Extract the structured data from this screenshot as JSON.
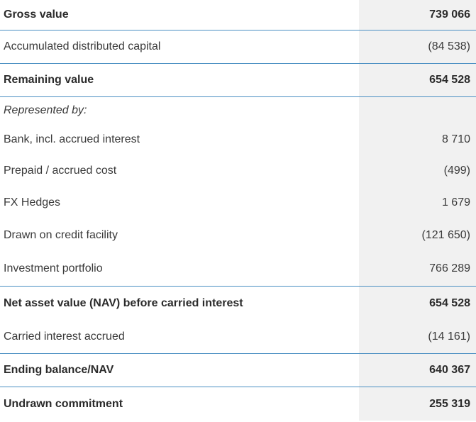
{
  "rows": [
    {
      "label": "Gross value",
      "value": "739 066"
    },
    {
      "label": "Accumulated distributed capital",
      "value": "(84 538)"
    },
    {
      "label": "Remaining value",
      "value": "654 528"
    },
    {
      "label": "Represented by:",
      "value": ""
    },
    {
      "label": "Bank, incl. accrued interest",
      "value": "8 710"
    },
    {
      "label": "Prepaid / accrued cost",
      "value": "(499)"
    },
    {
      "label": "FX Hedges",
      "value": "1 679"
    },
    {
      "label": "Drawn on credit facility",
      "value": "(121 650)"
    },
    {
      "label": "Investment portfolio",
      "value": "766 289"
    },
    {
      "label": "Net asset value (NAV) before carried interest",
      "value": "654 528"
    },
    {
      "label": "Carried interest accrued",
      "value": "(14 161)"
    },
    {
      "label": "Ending balance/NAV",
      "value": "640 367"
    },
    {
      "label": "Undrawn commitment",
      "value": "255 319"
    }
  ],
  "colors": {
    "divider": "#4a8fc2",
    "value_column_bg": "#f1f1f1",
    "text": "#3a3a3a"
  }
}
